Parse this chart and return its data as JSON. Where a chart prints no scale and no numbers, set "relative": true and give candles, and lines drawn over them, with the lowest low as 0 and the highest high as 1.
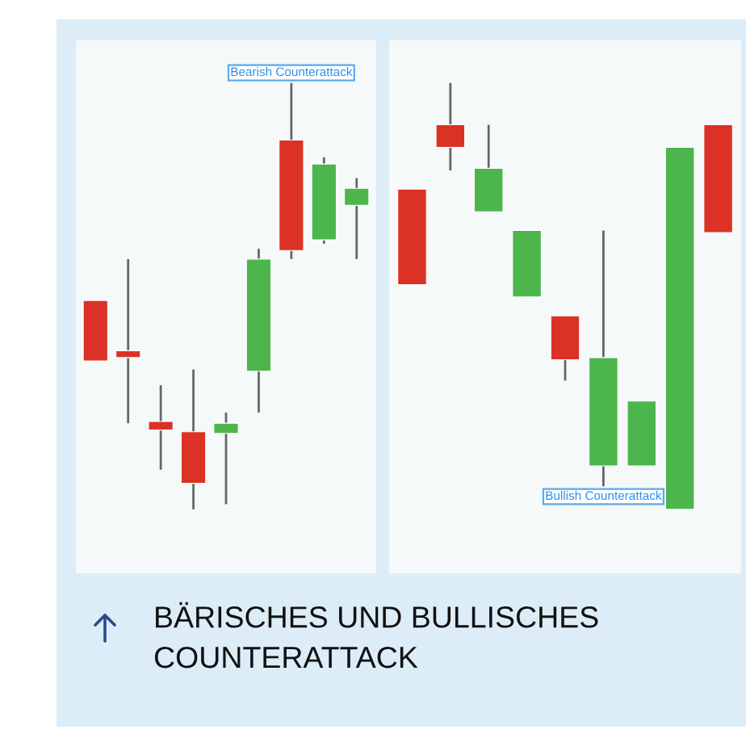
{
  "chart_data": [
    {
      "type": "candlestick",
      "relative": true,
      "categories": [
        null,
        null,
        null,
        null,
        null,
        null,
        null,
        null,
        null
      ],
      "ohlc": [
        [
          0.49,
          0.49,
          0.348,
          0.348
        ],
        [
          0.372,
          0.587,
          0.202,
          0.356
        ],
        [
          0.206,
          0.291,
          0.093,
          0.186
        ],
        [
          0.182,
          0.328,
          0.0,
          0.061
        ],
        [
          0.178,
          0.227,
          0.012,
          0.202
        ],
        [
          0.324,
          0.611,
          0.227,
          0.587
        ],
        [
          0.866,
          1.0,
          0.587,
          0.607
        ],
        [
          0.632,
          0.826,
          0.623,
          0.81
        ],
        [
          0.713,
          0.777,
          0.587,
          0.753
        ]
      ],
      "annotations": [
        {
          "text": "Bearish Counterattack",
          "y": 1.0
        },
        "BÄRISCHES UND BULLISCHES COUNTERATTACK"
      ]
    },
    {
      "type": "candlestick",
      "relative": true,
      "categories": [
        null,
        null,
        null,
        null,
        null,
        null,
        null,
        null,
        null
      ],
      "ohlc": [
        [
          0.751,
          0.751,
          0.527,
          0.527
        ],
        [
          0.902,
          1.0,
          0.795,
          0.849
        ],
        [
          0.698,
          0.902,
          0.698,
          0.8
        ],
        [
          0.498,
          0.654,
          0.498,
          0.654
        ],
        [
          0.454,
          0.454,
          0.302,
          0.351
        ],
        [
          0.102,
          0.654,
          0.054,
          0.356
        ],
        [
          0.102,
          0.254,
          0.102,
          0.254
        ],
        [
          0.0,
          0.849,
          0.0,
          0.849
        ],
        [
          0.902,
          0.902,
          0.649,
          0.649
        ]
      ],
      "annotations": [
        {
          "text": "Bullish Counterattack",
          "y": 0.054
        }
      ]
    }
  ]
}
